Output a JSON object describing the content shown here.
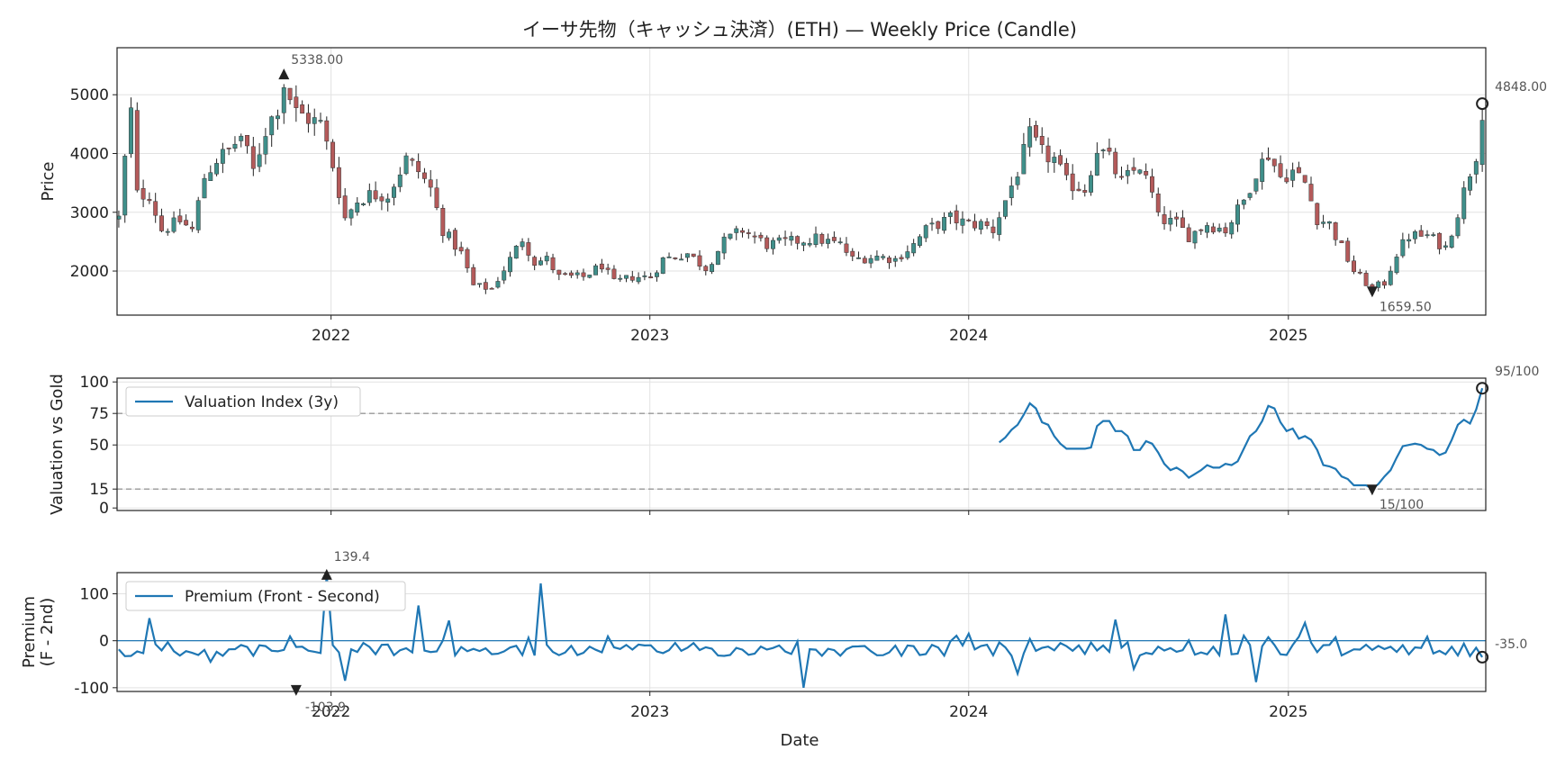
{
  "chart_data": {
    "type": "multi-panel",
    "title": "イーサ先物（キャッシュ決済）(ETH) — Weekly Price (Candle)",
    "x_axis": {
      "label": "Date",
      "range": [
        "2021-05-01",
        "2025-08-15"
      ],
      "ticks": [
        "2022",
        "2023",
        "2024",
        "2025"
      ]
    },
    "panels": [
      {
        "id": "price",
        "type": "candlestick",
        "ylabel": "Price",
        "ylim": [
          1250,
          5800
        ],
        "yticks": [
          2000,
          3000,
          4000,
          5000
        ],
        "grid": true,
        "up_color": "#3f8f8a",
        "down_color": "#b45a5a",
        "annotations": [
          {
            "label": "5338.00",
            "date": "2021-11-08",
            "value": 5338,
            "marker": "triangle-up"
          },
          {
            "label": "1659.50",
            "date": "2025-04-07",
            "value": 1659.5,
            "marker": "triangle-down"
          },
          {
            "label": "4848.00",
            "date": "2025-08-11",
            "value": 4848,
            "marker": "circle"
          }
        ],
        "anchors": [
          [
            "2021-05-03",
            2900
          ],
          [
            "2021-05-10",
            3900
          ],
          [
            "2021-05-17",
            4700
          ],
          [
            "2021-05-24",
            3300
          ],
          [
            "2021-06-07",
            3300
          ],
          [
            "2021-06-21",
            2700
          ],
          [
            "2021-07-12",
            2850
          ],
          [
            "2021-07-26",
            2700
          ],
          [
            "2021-08-09",
            3600
          ],
          [
            "2021-08-23",
            3900
          ],
          [
            "2021-09-06",
            4050
          ],
          [
            "2021-09-20",
            4300
          ],
          [
            "2021-10-04",
            3700
          ],
          [
            "2021-10-18",
            4400
          ],
          [
            "2021-11-01",
            4800
          ],
          [
            "2021-11-08",
            5200
          ],
          [
            "2021-11-22",
            4700
          ],
          [
            "2021-12-06",
            4600
          ],
          [
            "2021-12-20",
            4500
          ],
          [
            "2022-01-03",
            3800
          ],
          [
            "2022-01-17",
            2900
          ],
          [
            "2022-01-31",
            3200
          ],
          [
            "2022-02-14",
            3300
          ],
          [
            "2022-03-07",
            3300
          ],
          [
            "2022-03-28",
            3900
          ],
          [
            "2022-04-11",
            3700
          ],
          [
            "2022-04-25",
            3400
          ],
          [
            "2022-05-09",
            2700
          ],
          [
            "2022-05-30",
            2300
          ],
          [
            "2022-06-13",
            1750
          ],
          [
            "2022-07-04",
            1700
          ],
          [
            "2022-07-25",
            2200
          ],
          [
            "2022-08-08",
            2550
          ],
          [
            "2022-08-22",
            2150
          ],
          [
            "2022-09-05",
            2200
          ],
          [
            "2022-09-19",
            1900
          ],
          [
            "2022-10-17",
            1900
          ],
          [
            "2022-11-07",
            2100
          ],
          [
            "2022-11-21",
            1800
          ],
          [
            "2022-12-12",
            1900
          ],
          [
            "2023-01-02",
            1900
          ],
          [
            "2023-01-16",
            2200
          ],
          [
            "2023-02-13",
            2300
          ],
          [
            "2023-03-06",
            2050
          ],
          [
            "2023-03-27",
            2500
          ],
          [
            "2023-04-17",
            2700
          ],
          [
            "2023-05-15",
            2450
          ],
          [
            "2023-06-12",
            2500
          ],
          [
            "2023-07-10",
            2550
          ],
          [
            "2023-08-07",
            2450
          ],
          [
            "2023-08-21",
            2200
          ],
          [
            "2023-09-18",
            2250
          ],
          [
            "2023-10-09",
            2200
          ],
          [
            "2023-10-30",
            2450
          ],
          [
            "2023-11-13",
            2700
          ],
          [
            "2023-12-11",
            2900
          ],
          [
            "2024-01-01",
            2800
          ],
          [
            "2024-01-15",
            2800
          ],
          [
            "2024-01-29",
            2700
          ],
          [
            "2024-02-12",
            3200
          ],
          [
            "2024-02-26",
            3700
          ],
          [
            "2024-03-11",
            4300
          ],
          [
            "2024-03-25",
            4000
          ],
          [
            "2024-04-08",
            3900
          ],
          [
            "2024-04-22",
            3500
          ],
          [
            "2024-05-13",
            3400
          ],
          [
            "2024-05-27",
            4100
          ],
          [
            "2024-06-10",
            3900
          ],
          [
            "2024-06-24",
            3500
          ],
          [
            "2024-07-15",
            3800
          ],
          [
            "2024-07-29",
            3300
          ],
          [
            "2024-08-05",
            2900
          ],
          [
            "2024-08-26",
            2800
          ],
          [
            "2024-09-09",
            2600
          ],
          [
            "2024-09-30",
            2800
          ],
          [
            "2024-10-21",
            2700
          ],
          [
            "2024-11-11",
            3200
          ],
          [
            "2024-11-25",
            3700
          ],
          [
            "2024-12-09",
            4000
          ],
          [
            "2024-12-23",
            3600
          ],
          [
            "2025-01-06",
            3700
          ],
          [
            "2025-01-20",
            3500
          ],
          [
            "2025-02-03",
            2900
          ],
          [
            "2025-02-17",
            2800
          ],
          [
            "2025-03-03",
            2400
          ],
          [
            "2025-03-17",
            2000
          ],
          [
            "2025-04-07",
            1700
          ],
          [
            "2025-04-21",
            1800
          ],
          [
            "2025-05-05",
            2300
          ],
          [
            "2025-05-19",
            2600
          ],
          [
            "2025-06-09",
            2600
          ],
          [
            "2025-06-30",
            2400
          ],
          [
            "2025-07-14",
            3000
          ],
          [
            "2025-07-28",
            3700
          ],
          [
            "2025-08-04",
            4000
          ],
          [
            "2025-08-11",
            4750
          ]
        ]
      },
      {
        "id": "valuation",
        "type": "line",
        "ylabel": "Valuation vs Gold",
        "ylim": [
          -2,
          103
        ],
        "yticks": [
          0,
          15,
          50,
          75,
          100
        ],
        "hlines": [
          15,
          75
        ],
        "legend": {
          "label": "Valuation Index (3y)",
          "placement": "upper-left"
        },
        "color": "#1f77b4",
        "annotations": [
          {
            "label": "15/100",
            "date": "2025-04-07",
            "value": 15,
            "marker": "triangle-down"
          },
          {
            "label": "95/100",
            "date": "2025-08-11",
            "value": 95,
            "marker": "circle"
          }
        ],
        "series": [
          [
            "2024-02-05",
            52
          ],
          [
            "2024-02-12",
            56
          ],
          [
            "2024-02-19",
            62
          ],
          [
            "2024-02-26",
            66
          ],
          [
            "2024-03-04",
            74
          ],
          [
            "2024-03-11",
            83
          ],
          [
            "2024-03-18",
            79
          ],
          [
            "2024-03-25",
            68
          ],
          [
            "2024-04-01",
            66
          ],
          [
            "2024-04-08",
            57
          ],
          [
            "2024-04-15",
            51
          ],
          [
            "2024-04-22",
            47
          ],
          [
            "2024-04-29",
            47
          ],
          [
            "2024-05-06",
            47
          ],
          [
            "2024-05-13",
            47
          ],
          [
            "2024-05-20",
            48
          ],
          [
            "2024-05-27",
            65
          ],
          [
            "2024-06-03",
            69
          ],
          [
            "2024-06-10",
            69
          ],
          [
            "2024-06-17",
            61
          ],
          [
            "2024-06-24",
            61
          ],
          [
            "2024-07-01",
            57
          ],
          [
            "2024-07-08",
            46
          ],
          [
            "2024-07-15",
            46
          ],
          [
            "2024-07-22",
            53
          ],
          [
            "2024-07-29",
            51
          ],
          [
            "2024-08-05",
            44
          ],
          [
            "2024-08-12",
            35
          ],
          [
            "2024-08-19",
            30
          ],
          [
            "2024-08-26",
            32
          ],
          [
            "2024-09-02",
            29
          ],
          [
            "2024-09-09",
            24
          ],
          [
            "2024-09-16",
            27
          ],
          [
            "2024-09-23",
            30
          ],
          [
            "2024-09-30",
            34
          ],
          [
            "2024-10-07",
            32
          ],
          [
            "2024-10-14",
            32
          ],
          [
            "2024-10-21",
            35
          ],
          [
            "2024-10-28",
            34
          ],
          [
            "2024-11-04",
            37
          ],
          [
            "2024-11-11",
            47
          ],
          [
            "2024-11-18",
            57
          ],
          [
            "2024-11-25",
            61
          ],
          [
            "2024-12-02",
            69
          ],
          [
            "2024-12-09",
            81
          ],
          [
            "2024-12-16",
            79
          ],
          [
            "2024-12-23",
            68
          ],
          [
            "2024-12-30",
            61
          ],
          [
            "2025-01-06",
            63
          ],
          [
            "2025-01-13",
            55
          ],
          [
            "2025-01-20",
            57
          ],
          [
            "2025-01-27",
            54
          ],
          [
            "2025-02-03",
            46
          ],
          [
            "2025-02-10",
            34
          ],
          [
            "2025-02-17",
            33
          ],
          [
            "2025-02-24",
            31
          ],
          [
            "2025-03-03",
            25
          ],
          [
            "2025-03-10",
            23
          ],
          [
            "2025-03-17",
            18
          ],
          [
            "2025-03-24",
            18
          ],
          [
            "2025-03-31",
            18
          ],
          [
            "2025-04-07",
            15
          ],
          [
            "2025-04-14",
            19
          ],
          [
            "2025-04-21",
            25
          ],
          [
            "2025-04-28",
            30
          ],
          [
            "2025-05-05",
            40
          ],
          [
            "2025-05-12",
            49
          ],
          [
            "2025-05-19",
            50
          ],
          [
            "2025-05-26",
            51
          ],
          [
            "2025-06-02",
            50
          ],
          [
            "2025-06-09",
            47
          ],
          [
            "2025-06-16",
            46
          ],
          [
            "2025-06-23",
            42
          ],
          [
            "2025-06-30",
            44
          ],
          [
            "2025-07-07",
            54
          ],
          [
            "2025-07-14",
            66
          ],
          [
            "2025-07-21",
            70
          ],
          [
            "2025-07-28",
            67
          ],
          [
            "2025-08-04",
            78
          ],
          [
            "2025-08-11",
            95
          ]
        ]
      },
      {
        "id": "premium",
        "type": "line",
        "ylabel": "Premium",
        "ylabel2": "(F - 2nd)",
        "ylim": [
          -108,
          145
        ],
        "yticks": [
          -100,
          0,
          100
        ],
        "hlines": [
          0
        ],
        "legend": {
          "label": "Premium (Front - Second)",
          "placement": "upper-left"
        },
        "color": "#1f77b4",
        "annotations": [
          {
            "label": "139.4",
            "date": "2021-12-27",
            "value": 139.4,
            "marker": "triangle-up"
          },
          {
            "label": "-103.9",
            "date": "2021-11-22",
            "value": -103.9,
            "marker": "triangle-down"
          },
          {
            "label": "-35.0",
            "date": "2025-08-11",
            "value": -35,
            "marker": "circle"
          }
        ],
        "spikes": [
          [
            "2021-06-07",
            48
          ],
          [
            "2021-08-16",
            -45
          ],
          [
            "2021-12-27",
            139.4
          ],
          [
            "2022-01-17",
            -85
          ],
          [
            "2022-04-11",
            75
          ],
          [
            "2022-05-16",
            43
          ],
          [
            "2022-08-29",
            122
          ],
          [
            "2022-09-26",
            -25
          ],
          [
            "2023-01-23",
            -20
          ],
          [
            "2023-06-26",
            -100
          ],
          [
            "2024-01-01",
            15
          ],
          [
            "2024-02-26",
            -70
          ],
          [
            "2024-06-17",
            45
          ],
          [
            "2024-07-08",
            -60
          ],
          [
            "2024-10-21",
            56
          ],
          [
            "2024-11-25",
            -88
          ],
          [
            "2025-01-20",
            38
          ]
        ]
      }
    ]
  }
}
